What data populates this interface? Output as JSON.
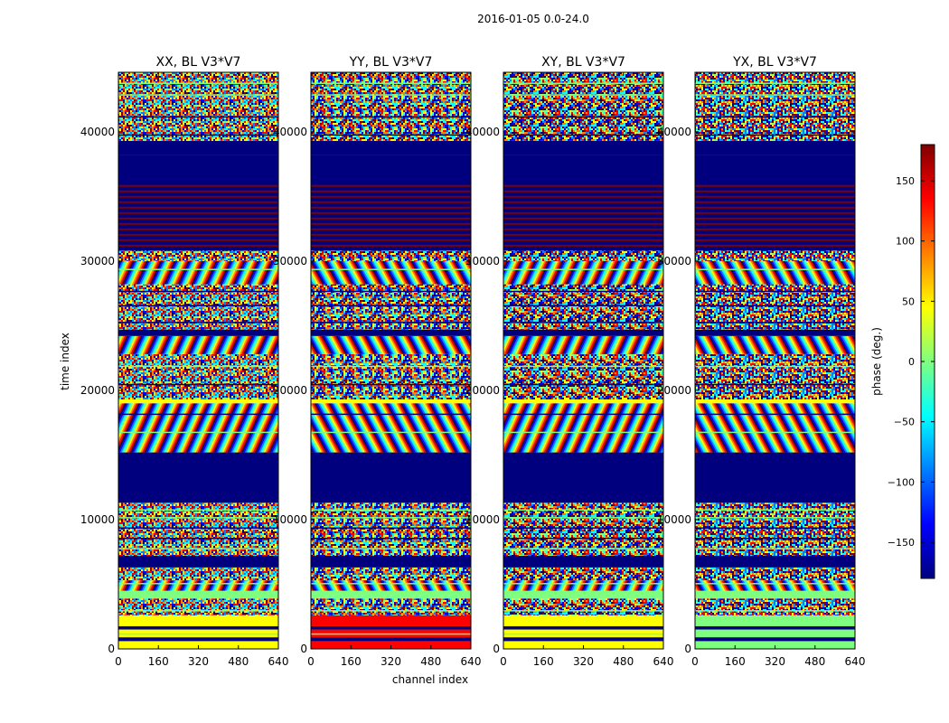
{
  "figure": {
    "suptitle": "2016-01-05 0.0-24.0"
  },
  "colors": {
    "jet": [
      "#00007f",
      "#0000ff",
      "#007fff",
      "#00ffff",
      "#7fff7f",
      "#ffff00",
      "#ff7f00",
      "#ff0000",
      "#7f0000"
    ],
    "background": "#ffffff",
    "flagged": "#00007f"
  },
  "chart_data": {
    "type": "heatmap",
    "shared_ylabel": "time index",
    "shared_xlabel": "channel index",
    "xlim": [
      0,
      640
    ],
    "ylim": [
      0,
      44600
    ],
    "x_ticks": [
      0,
      160,
      320,
      480,
      640
    ],
    "y_ticks": [
      0,
      10000,
      20000,
      30000,
      40000
    ],
    "x_tick_labels": [
      "0",
      "160",
      "320",
      "480",
      "640"
    ],
    "y_tick_labels": [
      "0",
      "10000",
      "20000",
      "30000",
      "40000"
    ],
    "panels": [
      {
        "title": "XX, BL V3*V7",
        "pol": "XX"
      },
      {
        "title": "YY, BL V3*V7",
        "pol": "YY"
      },
      {
        "title": "XY, BL V3*V7",
        "pol": "XY"
      },
      {
        "title": "YX, BL V3*V7",
        "pol": "YX"
      }
    ],
    "colorbar": {
      "label": "phase (deg.)",
      "range": [
        -180,
        180
      ],
      "ticks": [
        150,
        100,
        50,
        0,
        -50,
        -100,
        -150
      ],
      "tick_labels": [
        "150",
        "100",
        "50",
        "0",
        "−50",
        "−100",
        "−150"
      ],
      "colormap": "jet"
    },
    "flagged_time_ranges": [
      [
        30800,
        38200
      ],
      [
        11300,
        15200
      ],
      [
        6300,
        7200
      ],
      [
        24200,
        24700
      ]
    ],
    "banded_time_range": [
      30800,
      36000
    ]
  }
}
